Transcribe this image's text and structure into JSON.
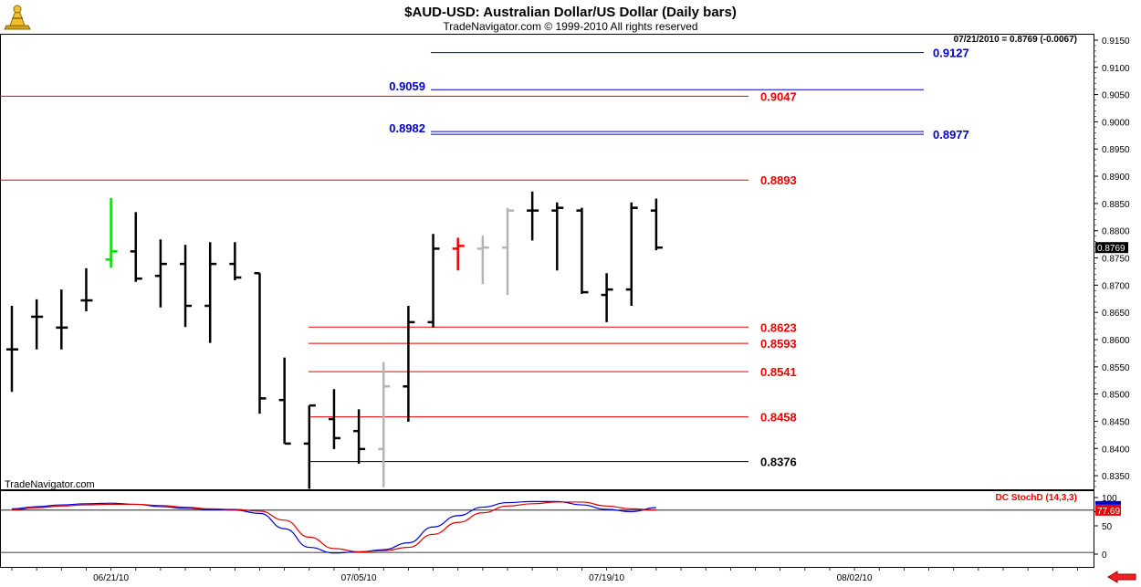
{
  "header": {
    "title": "$AUD-USD:  Australian Dollar/US Dollar  (Daily bars)",
    "copyright": "TradeNavigator.com © 1999-2010 All rights reserved",
    "last_quote": "07/21/2010 = 0.8769 (-0.0067)",
    "watermark": "TradeNavigator.com"
  },
  "colors": {
    "bar": "#000000",
    "bar_up": "#00dd00",
    "bar_down": "#ee0000",
    "bar_inside": "#b4b4b4",
    "level_red": "#ee0000",
    "level_blue": "#0000cc",
    "stoch_k": "#0000dd",
    "stoch_d": "#dd0000"
  },
  "chart_data": [
    {
      "type": "bar",
      "subtype": "ohlc",
      "title": "$AUD-USD:  Australian Dollar/US Dollar  (Daily bars)",
      "ylim": [
        0.8325,
        0.916
      ],
      "y_ticks": [
        "0.9150",
        "0.9100",
        "0.9050",
        "0.9000",
        "0.8950",
        "0.8900",
        "0.8850",
        "0.8800",
        "0.8750",
        "0.8700",
        "0.8650",
        "0.8600",
        "0.8550",
        "0.8500",
        "0.8450",
        "0.8400",
        "0.8350"
      ],
      "x_ticks": [
        "06/21/10",
        "07/05/10",
        "07/19/10",
        "08/02/10"
      ],
      "last_price_label": "0.8769",
      "bars": [
        {
          "i": 0,
          "high": 0.8662,
          "low": 0.8504,
          "open": 0.8582,
          "close": 0.8582,
          "color": "bar"
        },
        {
          "i": 1,
          "high": 0.8674,
          "low": 0.8582,
          "open": 0.8642,
          "close": 0.8642,
          "color": "bar"
        },
        {
          "i": 2,
          "high": 0.8692,
          "low": 0.8582,
          "open": 0.8622,
          "close": 0.8622,
          "color": "bar"
        },
        {
          "i": 3,
          "high": 0.8731,
          "low": 0.8652,
          "open": 0.8672,
          "close": 0.8672,
          "color": "bar"
        },
        {
          "i": 4,
          "high": 0.886,
          "low": 0.8732,
          "open": 0.8747,
          "close": 0.8762,
          "color": "bar_up"
        },
        {
          "i": 5,
          "high": 0.8834,
          "low": 0.8706,
          "open": 0.8762,
          "close": 0.8712,
          "color": "bar"
        },
        {
          "i": 6,
          "high": 0.8784,
          "low": 0.8659,
          "open": 0.8717,
          "close": 0.8739,
          "color": "bar"
        },
        {
          "i": 7,
          "high": 0.8774,
          "low": 0.8623,
          "open": 0.8739,
          "close": 0.8662,
          "color": "bar"
        },
        {
          "i": 8,
          "high": 0.8779,
          "low": 0.8594,
          "open": 0.8662,
          "close": 0.8739,
          "color": "bar"
        },
        {
          "i": 9,
          "high": 0.8779,
          "low": 0.8709,
          "open": 0.8739,
          "close": 0.8714,
          "color": "bar"
        },
        {
          "i": 10,
          "high": 0.8722,
          "low": 0.8464,
          "open": 0.8722,
          "close": 0.8492,
          "color": "bar"
        },
        {
          "i": 11,
          "high": 0.8567,
          "low": 0.8409,
          "open": 0.8489,
          "close": 0.8409,
          "color": "bar"
        },
        {
          "i": 12,
          "high": 0.8479,
          "low": 0.8326,
          "open": 0.8409,
          "close": 0.8479,
          "color": "bar"
        },
        {
          "i": 13,
          "high": 0.8509,
          "low": 0.8399,
          "open": 0.8454,
          "close": 0.8419,
          "color": "bar"
        },
        {
          "i": 14,
          "high": 0.8472,
          "low": 0.8372,
          "open": 0.8432,
          "close": 0.8399,
          "color": "bar"
        },
        {
          "i": 15,
          "high": 0.8559,
          "low": 0.8329,
          "open": 0.8399,
          "close": 0.8514,
          "color": "bar_inside"
        },
        {
          "i": 16,
          "high": 0.8662,
          "low": 0.8449,
          "open": 0.8514,
          "close": 0.8632,
          "color": "bar"
        },
        {
          "i": 17,
          "high": 0.8794,
          "low": 0.8622,
          "open": 0.8632,
          "close": 0.8767,
          "color": "bar"
        },
        {
          "i": 18,
          "high": 0.8787,
          "low": 0.8727,
          "open": 0.8767,
          "close": 0.8772,
          "color": "bar_down"
        },
        {
          "i": 19,
          "high": 0.8791,
          "low": 0.8702,
          "open": 0.8767,
          "close": 0.8769,
          "color": "bar_inside"
        },
        {
          "i": 20,
          "high": 0.8842,
          "low": 0.8682,
          "open": 0.8769,
          "close": 0.8837,
          "color": "bar_inside"
        },
        {
          "i": 21,
          "high": 0.8872,
          "low": 0.8782,
          "open": 0.8837,
          "close": 0.8837,
          "color": "bar"
        },
        {
          "i": 22,
          "high": 0.8852,
          "low": 0.8727,
          "open": 0.8837,
          "close": 0.8842,
          "color": "bar"
        },
        {
          "i": 23,
          "high": 0.8842,
          "low": 0.8684,
          "open": 0.8837,
          "close": 0.8687,
          "color": "bar"
        },
        {
          "i": 24,
          "high": 0.8722,
          "low": 0.8632,
          "open": 0.8682,
          "close": 0.8692,
          "color": "bar"
        },
        {
          "i": 25,
          "high": 0.8852,
          "low": 0.8662,
          "open": 0.8692,
          "close": 0.8842,
          "color": "bar"
        },
        {
          "i": 26,
          "high": 0.8859,
          "low": 0.8764,
          "open": 0.8837,
          "close": 0.8769,
          "color": "bar"
        }
      ],
      "levels": [
        {
          "label": "0.9127",
          "value": 0.9127,
          "color": "level_blue",
          "start": "mid",
          "side": "right"
        },
        {
          "label": "0.9059",
          "value": 0.9059,
          "color": "level_blue",
          "start": "mid",
          "side": "left"
        },
        {
          "label": "0.9047",
          "value": 0.9047,
          "color": "level_red",
          "start": "left",
          "side": "right"
        },
        {
          "label": "0.8982",
          "value": 0.8982,
          "color": "level_blue",
          "start": "mid",
          "side": "left"
        },
        {
          "label": "0.8977",
          "value": 0.8977,
          "color": "level_blue",
          "start": "mid",
          "side": "right"
        },
        {
          "label": "0.8893",
          "value": 0.8893,
          "color": "level_red",
          "start": "left",
          "side": "right"
        },
        {
          "label": "0.8623",
          "value": 0.8623,
          "color": "level_red",
          "start": "low",
          "side": "right"
        },
        {
          "label": "0.8593",
          "value": 0.8593,
          "color": "level_red",
          "start": "low",
          "side": "right"
        },
        {
          "label": "0.8541",
          "value": 0.8541,
          "color": "level_red",
          "start": "low",
          "side": "right"
        },
        {
          "label": "0.8458",
          "value": 0.8458,
          "color": "level_red",
          "start": "low",
          "side": "right"
        },
        {
          "label": "0.8376",
          "value": 0.8376,
          "color": "bar",
          "start": "low",
          "side": "right"
        }
      ]
    },
    {
      "type": "line",
      "title": "DC StochD (14,3,3)",
      "ylim": [
        0,
        100
      ],
      "y_ticks": [
        "100",
        "75",
        "50",
        "0"
      ],
      "y_tick_values": [
        100,
        75,
        50,
        0
      ],
      "reference_lines": [
        77.69,
        3
      ],
      "current_value_label": "77.69",
      "x": [
        0,
        1,
        2,
        3,
        4,
        5,
        6,
        7,
        8,
        9,
        10,
        11,
        12,
        13,
        14,
        15,
        16,
        17,
        18,
        19,
        20,
        21,
        22,
        23,
        24,
        25,
        26
      ],
      "series": [
        {
          "key": "k",
          "values": [
            80,
            84,
            87,
            89,
            90,
            88,
            84,
            81,
            79,
            78,
            72,
            45,
            12,
            2,
            4,
            8,
            20,
            48,
            68,
            83,
            91,
            93,
            93,
            87,
            79,
            75,
            82
          ]
        },
        {
          "key": "d",
          "values": [
            78,
            82,
            85,
            87,
            88,
            88,
            86,
            83,
            80,
            79,
            76,
            60,
            30,
            10,
            4,
            6,
            12,
            35,
            56,
            73,
            85,
            89,
            92,
            92,
            85,
            80,
            78
          ]
        }
      ]
    }
  ]
}
